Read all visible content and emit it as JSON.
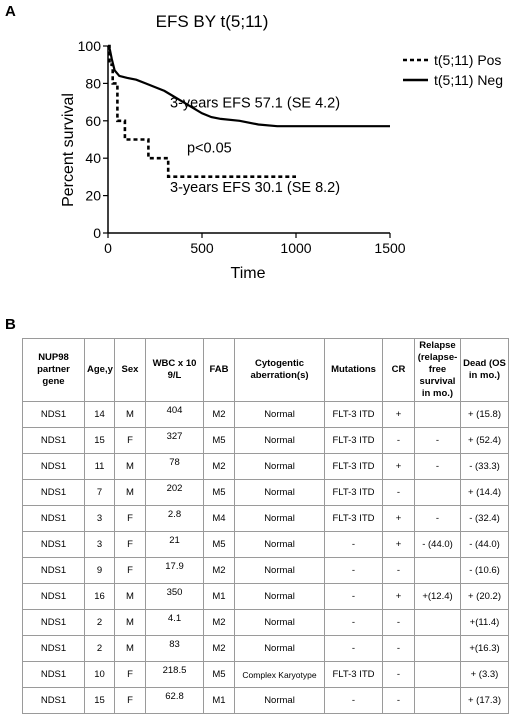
{
  "panel_a_label": "A",
  "panel_b_label": "B",
  "chart_data": {
    "type": "line",
    "title": "EFS BY t(5;11)",
    "xlabel": "Time",
    "ylabel": "Percent survival",
    "xlim": [
      0,
      1500
    ],
    "ylim": [
      0,
      100
    ],
    "x_ticks": [
      "0",
      "500",
      "1000",
      "1500"
    ],
    "y_ticks": [
      "0",
      "20",
      "40",
      "60",
      "80",
      "100"
    ],
    "legend_position": "top-right",
    "series": [
      {
        "name": "t(5;11) Pos",
        "style": "dashed",
        "color": "#000000",
        "x": [
          0,
          8,
          8,
          25,
          25,
          50,
          50,
          90,
          90,
          215,
          215,
          320,
          320,
          1000
        ],
        "y": [
          100,
          100,
          90,
          90,
          80,
          80,
          60,
          60,
          50,
          50,
          40,
          40,
          30.1,
          30.1
        ]
      },
      {
        "name": "t(5;11) Neg",
        "style": "solid",
        "color": "#000000",
        "x": [
          0,
          10,
          20,
          35,
          60,
          100,
          150,
          200,
          250,
          300,
          350,
          400,
          450,
          500,
          550,
          600,
          700,
          800,
          900,
          1000,
          1200,
          1500
        ],
        "y": [
          100,
          98,
          93,
          87,
          84,
          83,
          82,
          80,
          78,
          76,
          73,
          70,
          67,
          64,
          62,
          61,
          60,
          58,
          57.1,
          57.1,
          57.1,
          57.1
        ]
      }
    ],
    "annotations": [
      {
        "text": "3-years EFS 57.1 (SE 4.2)",
        "x": 330,
        "y": 67
      },
      {
        "text": "p<0.05",
        "x": 420,
        "y": 43
      },
      {
        "text": "3-years EFS 30.1 (SE 8.2)",
        "x": 330,
        "y": 22
      }
    ]
  },
  "table": {
    "headers": [
      "NUP98 partner gene",
      "Age,y",
      "Sex",
      "WBC x 10 9/L",
      "FAB",
      "Cytogentic aberration(s)",
      "Mutations",
      "CR",
      "Relapse (relapse-free survival in mo.)",
      "Dead (OS in mo.)"
    ],
    "rows": [
      [
        "NDS1",
        "14",
        "M",
        "404",
        "M2",
        "Normal",
        "FLT-3 ITD",
        "+",
        "",
        "+ (15.8)"
      ],
      [
        "NDS1",
        "15",
        "F",
        "327",
        "M5",
        "Normal",
        "FLT-3 ITD",
        "-",
        "-",
        "+ (52.4)"
      ],
      [
        "NDS1",
        "11",
        "M",
        "78",
        "M2",
        "Normal",
        "FLT-3 ITD",
        "+",
        "-",
        "- (33.3)"
      ],
      [
        "NDS1",
        "7",
        "M",
        "202",
        "M5",
        "Normal",
        "FLT-3 ITD",
        "-",
        "",
        "+ (14.4)"
      ],
      [
        "NDS1",
        "3",
        "F",
        "2.8",
        "M4",
        "Normal",
        "FLT-3 ITD",
        "+",
        "-",
        "- (32.4)"
      ],
      [
        "NDS1",
        "3",
        "F",
        "21",
        "M5",
        "Normal",
        "-",
        "+",
        "- (44.0)",
        "- (44.0)"
      ],
      [
        "NDS1",
        "9",
        "F",
        "17.9",
        "M2",
        "Normal",
        "-",
        "-",
        "",
        "- (10.6)"
      ],
      [
        "NDS1",
        "16",
        "M",
        "350",
        "M1",
        "Normal",
        "-",
        "+",
        "+(12.4)",
        "+ (20.2)"
      ],
      [
        "NDS1",
        "2",
        "M",
        "4.1",
        "M2",
        "Normal",
        "-",
        "-",
        "",
        "+(11.4)"
      ],
      [
        "NDS1",
        "2",
        "M",
        "83",
        "M2",
        "Normal",
        "-",
        "-",
        "",
        "+(16.3)"
      ],
      [
        "NDS1",
        "10",
        "F",
        "218.5",
        "M5",
        "Complex Karyotype",
        "FLT-3 ITD",
        "-",
        "",
        "+ (3.3)"
      ],
      [
        "NDS1",
        "15",
        "F",
        "62.8",
        "M1",
        "Normal",
        "-",
        "-",
        "",
        "+ (17.3)"
      ]
    ]
  }
}
